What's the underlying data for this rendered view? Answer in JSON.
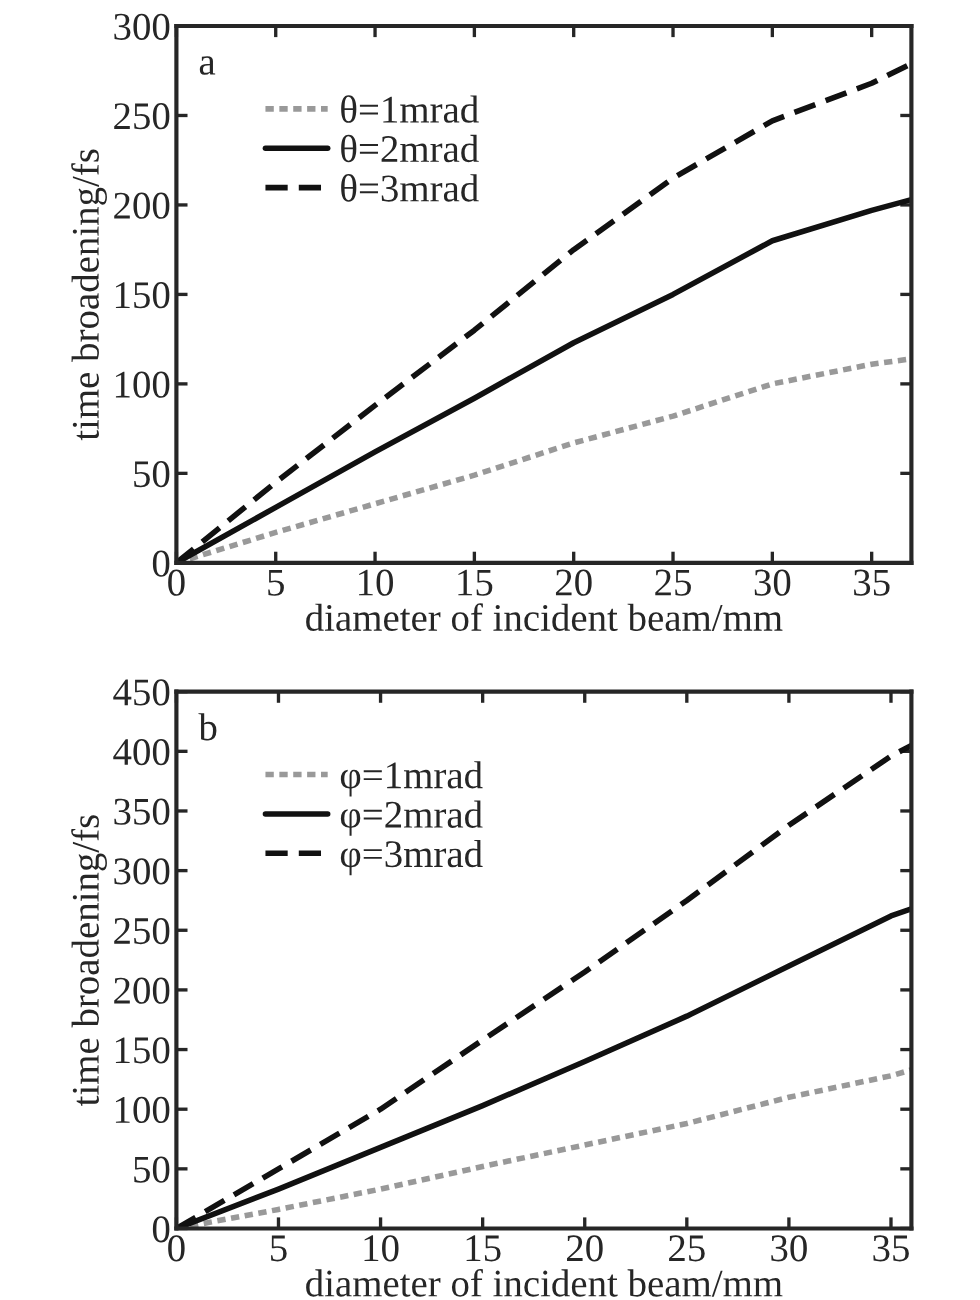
{
  "chart_data": [
    {
      "type": "line",
      "xlabel": "diameter of incident beam/mm",
      "ylabel": "time broadening/fs",
      "annotations": [
        "a"
      ],
      "xlim": [
        0,
        37
      ],
      "ylim": [
        0,
        300
      ],
      "xticks": [
        0,
        5,
        10,
        15,
        20,
        25,
        30,
        35
      ],
      "yticks": [
        0,
        50,
        100,
        150,
        200,
        250,
        300
      ],
      "legend": "top left",
      "grid": false,
      "x": [
        0,
        5,
        10,
        15,
        20,
        25,
        30,
        35,
        37
      ],
      "series": [
        {
          "name": "θ=1mrad",
          "color": "#999999",
          "line_style": "dotted",
          "values": [
            0,
            17,
            33,
            49,
            67,
            82,
            100,
            111,
            114
          ]
        },
        {
          "name": "θ=2mrad",
          "color": "#111111",
          "line_style": "solid",
          "values": [
            0,
            31,
            62,
            92,
            123,
            150,
            180,
            197,
            203
          ]
        },
        {
          "name": "θ=3mrad",
          "color": "#111111",
          "line_style": "dashed",
          "values": [
            0,
            45,
            88,
            130,
            175,
            215,
            247,
            268,
            279
          ]
        }
      ]
    },
    {
      "type": "line",
      "xlabel": "diameter of incident beam/mm",
      "ylabel": "time broadening/fs",
      "annotations": [
        "b"
      ],
      "xlim": [
        0,
        36
      ],
      "ylim": [
        0,
        450
      ],
      "xticks": [
        0,
        5,
        10,
        15,
        20,
        25,
        30,
        35
      ],
      "yticks": [
        0,
        50,
        100,
        150,
        200,
        250,
        300,
        350,
        400,
        450
      ],
      "legend": "top left",
      "grid": false,
      "x": [
        0,
        5,
        10,
        15,
        20,
        25,
        30,
        35,
        36
      ],
      "series": [
        {
          "name": "φ=1mrad",
          "color": "#999999",
          "line_style": "dotted",
          "values": [
            0,
            16,
            33,
            52,
            70,
            88,
            110,
            128,
            133
          ]
        },
        {
          "name": "φ=2mrad",
          "color": "#111111",
          "line_style": "solid",
          "values": [
            0,
            33,
            68,
            103,
            140,
            178,
            220,
            262,
            268
          ]
        },
        {
          "name": "φ=3mrad",
          "color": "#111111",
          "line_style": "dashed",
          "values": [
            0,
            50,
            100,
            158,
            215,
            275,
            338,
            396,
            405
          ]
        }
      ]
    }
  ]
}
